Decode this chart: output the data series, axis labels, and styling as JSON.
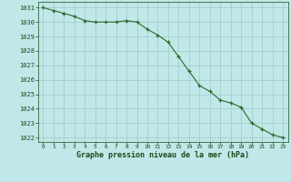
{
  "x": [
    0,
    1,
    2,
    3,
    4,
    5,
    6,
    7,
    8,
    9,
    10,
    11,
    12,
    13,
    14,
    15,
    16,
    17,
    18,
    19,
    20,
    21,
    22,
    23
  ],
  "y": [
    1031.0,
    1030.8,
    1030.6,
    1030.4,
    1030.1,
    1030.0,
    1030.0,
    1030.0,
    1030.1,
    1030.0,
    1029.5,
    1029.1,
    1028.6,
    1027.6,
    1026.6,
    1025.6,
    1025.2,
    1024.6,
    1024.4,
    1024.1,
    1023.0,
    1022.6,
    1022.2,
    1022.0
  ],
  "line_color": "#2d6a2d",
  "marker": "+",
  "bg_color": "#c0e8e8",
  "grid_color": "#a0c8c8",
  "text_color": "#1a4a1a",
  "xlabel": "Graphe pression niveau de la mer (hPa)",
  "ylim": [
    1021.7,
    1031.4
  ],
  "xlim": [
    -0.5,
    23.5
  ],
  "yticks": [
    1022,
    1023,
    1024,
    1025,
    1026,
    1027,
    1028,
    1029,
    1030,
    1031
  ],
  "xticks": [
    0,
    1,
    2,
    3,
    4,
    5,
    6,
    7,
    8,
    9,
    10,
    11,
    12,
    13,
    14,
    15,
    16,
    17,
    18,
    19,
    20,
    21,
    22,
    23
  ]
}
